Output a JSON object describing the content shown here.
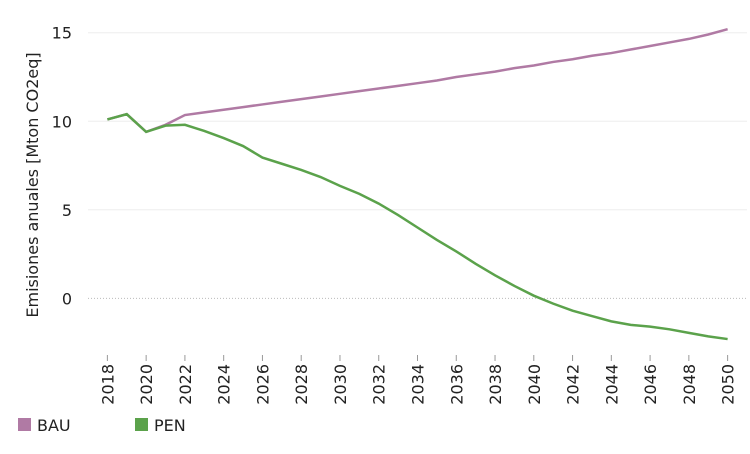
{
  "chart_data": {
    "type": "line",
    "y_label": "Emisiones anuales [Mton CO2eq]",
    "x": [
      2018,
      2019,
      2020,
      2021,
      2022,
      2023,
      2024,
      2025,
      2026,
      2027,
      2028,
      2029,
      2030,
      2031,
      2032,
      2033,
      2034,
      2035,
      2036,
      2037,
      2038,
      2039,
      2040,
      2041,
      2042,
      2043,
      2044,
      2045,
      2046,
      2047,
      2048,
      2049,
      2050
    ],
    "series": [
      {
        "name": "BAU",
        "color": "#b07aa4",
        "values": [
          10.1,
          10.4,
          9.4,
          9.8,
          10.35,
          10.5,
          10.65,
          10.8,
          10.95,
          11.1,
          11.25,
          11.4,
          11.55,
          11.7,
          11.85,
          12.0,
          12.15,
          12.3,
          12.5,
          12.65,
          12.8,
          13.0,
          13.15,
          13.35,
          13.5,
          13.7,
          13.85,
          14.05,
          14.25,
          14.45,
          14.65,
          14.9,
          15.2
        ]
      },
      {
        "name": "PEN",
        "color": "#5ba24b",
        "values": [
          10.1,
          10.4,
          9.4,
          9.75,
          9.8,
          9.45,
          9.05,
          8.6,
          7.95,
          7.6,
          7.25,
          6.85,
          6.35,
          5.9,
          5.35,
          4.7,
          4.0,
          3.3,
          2.65,
          1.95,
          1.3,
          0.7,
          0.15,
          -0.3,
          -0.7,
          -1.0,
          -1.3,
          -1.5,
          -1.6,
          -1.75,
          -1.95,
          -2.15,
          -2.3
        ]
      }
    ],
    "xlim": [
      2017,
      2051
    ],
    "xticks": [
      2018,
      2020,
      2022,
      2024,
      2026,
      2028,
      2030,
      2032,
      2034,
      2036,
      2038,
      2040,
      2042,
      2044,
      2046,
      2048,
      2050
    ],
    "ylim": [
      -3.2,
      16
    ],
    "yticks": [
      0,
      5,
      10,
      15
    ],
    "grid": true,
    "legend": "bottom-left"
  }
}
